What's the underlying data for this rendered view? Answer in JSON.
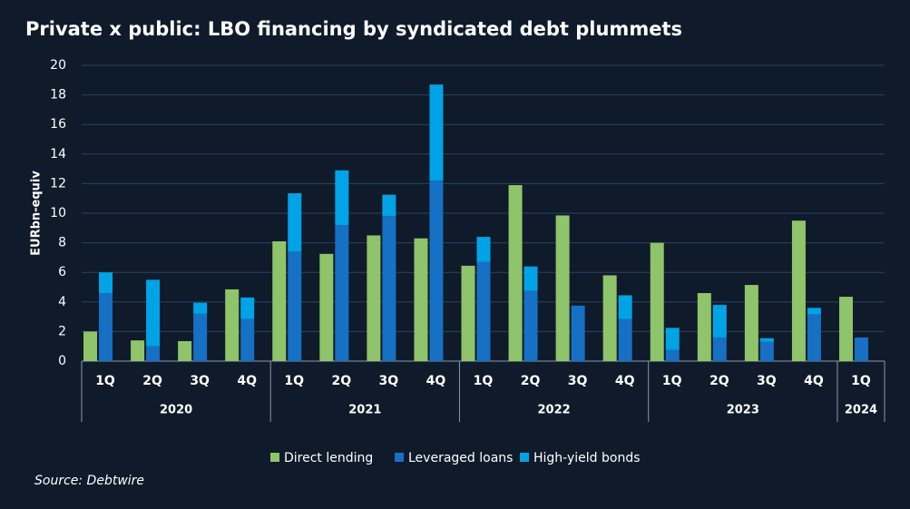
{
  "chart_data": {
    "type": "bar",
    "title": "Private x public: LBO financing by syndicated debt plummets",
    "y_label": "EURbn-equiv",
    "source": "Source: Debtwire",
    "groups": [
      {
        "name": "2020",
        "categories": [
          "1Q",
          "2Q",
          "3Q",
          "4Q"
        ]
      },
      {
        "name": "2021",
        "categories": [
          "1Q",
          "2Q",
          "3Q",
          "4Q"
        ]
      },
      {
        "name": "2022",
        "categories": [
          "1Q",
          "2Q",
          "3Q",
          "4Q"
        ]
      },
      {
        "name": "2023",
        "categories": [
          "1Q",
          "2Q",
          "3Q",
          "4Q"
        ]
      },
      {
        "name": "2024",
        "categories": [
          "1Q"
        ]
      }
    ],
    "series": [
      {
        "name": "Direct lending",
        "color": "#8fc46a",
        "values": [
          2.0,
          1.4,
          1.35,
          4.85,
          8.1,
          7.25,
          8.5,
          8.3,
          6.45,
          11.9,
          9.85,
          5.8,
          8.0,
          4.6,
          5.15,
          9.5,
          4.35
        ]
      },
      {
        "name": "Leveraged loans",
        "color": "#1670c4",
        "values": [
          4.6,
          1.0,
          3.2,
          2.85,
          7.4,
          9.2,
          9.8,
          12.2,
          6.7,
          4.75,
          3.75,
          2.85,
          0.75,
          1.6,
          1.3,
          3.15,
          1.6
        ]
      },
      {
        "name": "High-yield bonds",
        "color": "#00a3e6",
        "values": [
          1.4,
          4.5,
          0.75,
          1.45,
          3.95,
          3.7,
          1.45,
          6.5,
          1.7,
          1.65,
          0,
          1.6,
          1.5,
          2.2,
          0.25,
          0.45,
          0
        ]
      }
    ],
    "ylim": [
      0,
      20
    ],
    "yticks": [
      0,
      2,
      4,
      6,
      8,
      10,
      12,
      14,
      16,
      18,
      20
    ],
    "grid": true,
    "legend": "bottom"
  }
}
